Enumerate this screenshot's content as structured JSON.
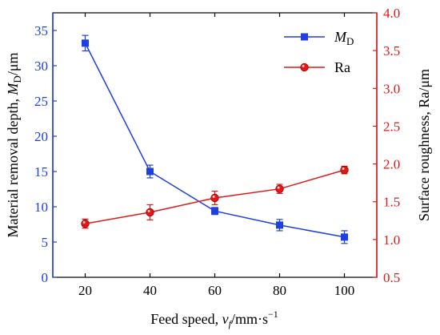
{
  "chart_data": {
    "type": "line",
    "x_label": "Feed speed, v_f/mm·s⁻¹",
    "x_label_parts": {
      "main": "Feed speed, ",
      "var": "v",
      "sub": "f",
      "unit": "/mm·s",
      "sup": "−1"
    },
    "x_ticks": [
      "20",
      "40",
      "60",
      "80",
      "100"
    ],
    "xlim": [
      10,
      110
    ],
    "y_left": {
      "label_parts": {
        "main": "Material removal depth, ",
        "var": "M",
        "sub": "D",
        "unit": "/μm"
      },
      "ylim": [
        0,
        37.5
      ],
      "ticks": [
        "0",
        "5",
        "10",
        "15",
        "20",
        "25",
        "30",
        "35"
      ],
      "color": "#1f3fe0"
    },
    "y_right": {
      "label_parts": {
        "main": "Surface roughness, Ra/μm"
      },
      "ylim": [
        0.5,
        4.0
      ],
      "ticks": [
        "0.5",
        "1.0",
        "1.5",
        "2.0",
        "2.5",
        "3.0",
        "3.5",
        "4.0"
      ],
      "color": "#e01818"
    },
    "series": [
      {
        "name": "M_D",
        "legend_main": "M",
        "legend_sub": "D",
        "axis": "left",
        "marker": "square",
        "color": "#1f3fe0",
        "x": [
          20,
          40,
          60,
          80,
          100
        ],
        "y": [
          33.2,
          15.0,
          9.4,
          7.4,
          5.7
        ],
        "err": [
          1.1,
          0.9,
          0.5,
          0.8,
          0.9
        ]
      },
      {
        "name": "Ra",
        "legend_main": "Ra",
        "legend_sub": "",
        "axis": "right",
        "marker": "circle",
        "color": "#e01818",
        "x": [
          20,
          40,
          60,
          80,
          100
        ],
        "y": [
          1.21,
          1.36,
          1.55,
          1.67,
          1.92
        ],
        "err": [
          0.06,
          0.1,
          0.09,
          0.06,
          0.05
        ]
      }
    ],
    "legend_position": "top-right",
    "grid": false
  }
}
